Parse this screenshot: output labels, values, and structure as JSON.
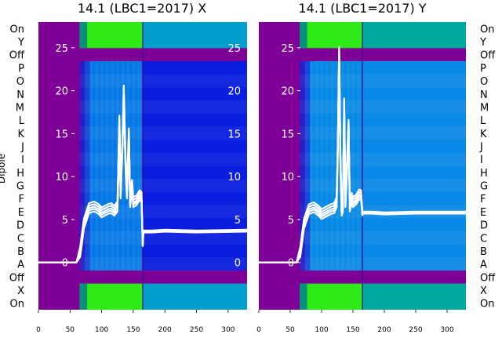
{
  "chart_data": [
    {
      "type": "heatmap",
      "title": "14.1 (LBC1=2017) X",
      "ylabel": "Dipole",
      "row_labels_left": [
        "On",
        "Y",
        "Off",
        "P",
        "O",
        "N",
        "M",
        "L",
        "K",
        "J",
        "I",
        "H",
        "G",
        "F",
        "E",
        "D",
        "C",
        "B",
        "A",
        "Off",
        "X",
        "On"
      ],
      "x_ticks": [
        0,
        50,
        100,
        150,
        200,
        250,
        300
      ],
      "xlim": [
        0,
        330
      ],
      "overlay_ticks": [
        0,
        5,
        10,
        15,
        20,
        25
      ],
      "overlay_ylim": [
        -5.5,
        28
      ],
      "transitions": [
        65,
        165
      ],
      "trace": {
        "x": [
          0,
          60,
          66,
          72,
          80,
          88,
          95,
          100,
          110,
          115,
          120,
          125,
          128,
          130,
          133,
          135,
          138,
          140,
          143,
          145,
          148,
          150,
          155,
          160,
          163,
          165,
          166,
          180,
          200,
          250,
          330
        ],
        "y": [
          0,
          0,
          1.2,
          4.5,
          6.3,
          6.5,
          6.2,
          5.8,
          6.2,
          6.3,
          6.0,
          6.5,
          16.5,
          8,
          14,
          20,
          11,
          8,
          15,
          7,
          9,
          7,
          7.2,
          7.8,
          7.6,
          2,
          3.6,
          3.6,
          3.7,
          3.6,
          3.7
        ]
      }
    },
    {
      "type": "heatmap",
      "title": "14.1 (LBC1=2017) Y",
      "row_labels_right": [
        "On",
        "Y",
        "Off",
        "P",
        "O",
        "N",
        "M",
        "L",
        "K",
        "J",
        "I",
        "H",
        "G",
        "F",
        "E",
        "D",
        "C",
        "B",
        "A",
        "Off",
        "X",
        "On"
      ],
      "x_ticks": [
        0,
        50,
        100,
        150,
        200,
        250,
        300
      ],
      "xlim": [
        0,
        330
      ],
      "overlay_ticks": [
        0,
        5,
        10,
        15,
        20,
        25
      ],
      "overlay_ylim": [
        -5.5,
        28
      ],
      "transitions": [
        65,
        165
      ],
      "trace": {
        "x": [
          0,
          60,
          66,
          72,
          80,
          88,
          95,
          100,
          110,
          115,
          120,
          124,
          126,
          128,
          130,
          132,
          134,
          136,
          138,
          140,
          143,
          145,
          148,
          150,
          155,
          160,
          163,
          165,
          166,
          180,
          200,
          250,
          330
        ],
        "y": [
          0,
          0,
          1.2,
          4.5,
          6.2,
          6.4,
          6.0,
          5.6,
          6.0,
          6.2,
          6.3,
          7.0,
          14,
          24.5,
          12,
          6,
          6.5,
          18.5,
          7,
          10,
          16,
          6.5,
          7.5,
          7,
          7.3,
          7.9,
          7.8,
          5.6,
          5.8,
          5.8,
          5.7,
          5.8,
          5.8
        ]
      }
    }
  ],
  "colors": {
    "off_band": "#7e0097",
    "blue_dark": "#0a1ee0",
    "blue_mid": "#0060f0",
    "blue_light": "#0a8ae8",
    "green": "#2eea17",
    "cyan_x": "#01a0cc",
    "cyan_y": "#00a99e",
    "trace": "#ffffff",
    "divider": "#3b0088"
  }
}
